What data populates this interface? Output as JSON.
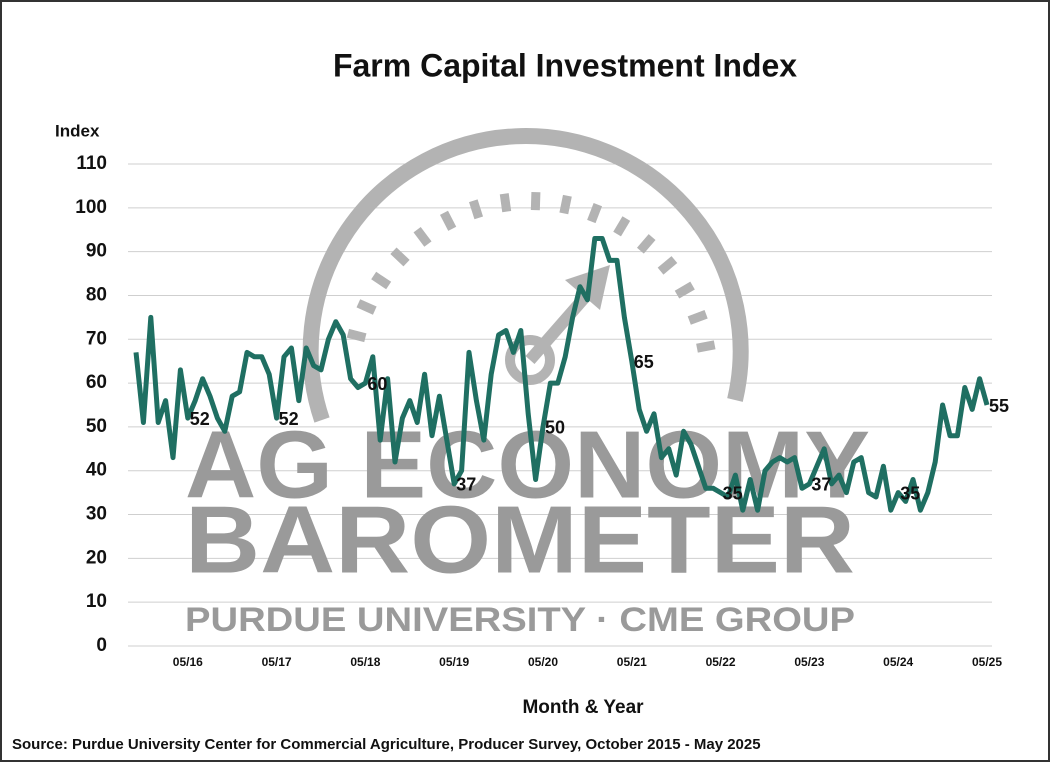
{
  "chart_data": {
    "type": "line",
    "title": "Farm Capital Investment Index",
    "y_axis_label": "Index",
    "x_axis_label": "Month & Year",
    "source": "Source: Purdue University Center for Commercial Agriculture, Producer Survey, October 2015 - May 2025",
    "watermark": [
      "AG ECONOMY",
      "BAROMETER",
      "PURDUE UNIVERSITY · CME GROUP"
    ],
    "color": "#1f6f62",
    "grid": true,
    "ylim": [
      0,
      110
    ],
    "yticks": [
      0,
      10,
      20,
      30,
      40,
      50,
      60,
      70,
      80,
      90,
      100,
      110
    ],
    "categories": [
      null,
      null,
      null,
      null,
      null,
      null,
      null,
      "05/16",
      null,
      null,
      null,
      null,
      null,
      null,
      null,
      null,
      null,
      null,
      null,
      "05/17",
      null,
      null,
      null,
      null,
      null,
      null,
      null,
      null,
      null,
      null,
      null,
      "05/18",
      null,
      null,
      null,
      null,
      null,
      null,
      null,
      null,
      null,
      null,
      null,
      "05/19",
      null,
      null,
      null,
      null,
      null,
      null,
      null,
      null,
      null,
      null,
      null,
      "05/20",
      null,
      null,
      null,
      null,
      null,
      null,
      null,
      null,
      null,
      null,
      null,
      "05/21",
      null,
      null,
      null,
      null,
      null,
      null,
      null,
      null,
      null,
      null,
      null,
      "05/22",
      null,
      null,
      null,
      null,
      null,
      null,
      null,
      null,
      null,
      null,
      null,
      "05/23",
      null,
      null,
      null,
      null,
      null,
      null,
      null,
      null,
      null,
      null,
      null,
      "05/24",
      null,
      null,
      null,
      null,
      null,
      null,
      null,
      null,
      null,
      null,
      null,
      "05/25"
    ],
    "values": [
      67,
      51,
      75,
      51,
      56,
      43,
      63,
      52,
      56,
      61,
      57,
      52,
      49,
      57,
      58,
      67,
      66,
      66,
      62,
      52,
      66,
      68,
      56,
      68,
      64,
      63,
      70,
      74,
      71,
      61,
      59,
      60,
      66,
      47,
      61,
      42,
      52,
      56,
      51,
      62,
      48,
      57,
      47,
      37,
      40,
      67,
      56,
      47,
      62,
      71,
      72,
      67,
      72,
      53,
      38,
      50,
      60,
      60,
      66,
      75,
      82,
      79,
      93,
      93,
      88,
      88,
      75,
      65,
      54,
      49,
      53,
      43,
      45,
      39,
      49,
      46,
      41,
      36,
      36,
      35,
      34,
      39,
      31,
      38,
      31,
      40,
      42,
      43,
      42,
      43,
      36,
      37,
      41,
      45,
      37,
      39,
      35,
      42,
      43,
      35,
      34,
      41,
      31,
      35,
      33,
      38,
      31,
      35,
      42,
      55,
      48,
      48,
      59,
      54,
      61,
      55
    ],
    "labeled_points": [
      7,
      19,
      31,
      43,
      55,
      67,
      79,
      91,
      103,
      115
    ]
  }
}
